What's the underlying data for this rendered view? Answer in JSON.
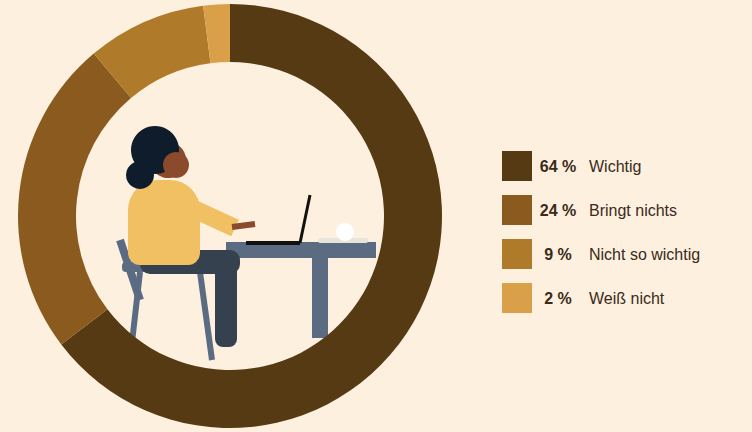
{
  "chart_data": {
    "type": "pie",
    "categories": [
      "Wichtig",
      "Bringt nichts",
      "Nicht so wichtig",
      "Weiß nicht"
    ],
    "values": [
      64,
      24,
      9,
      2
    ],
    "value_labels": [
      "64 %",
      "24 %",
      "9 %",
      "2 %"
    ],
    "colors": [
      "#553a13",
      "#8b5a1e",
      "#b07a2b",
      "#d9a049"
    ],
    "legend": "right",
    "data_labels": false
  }
}
